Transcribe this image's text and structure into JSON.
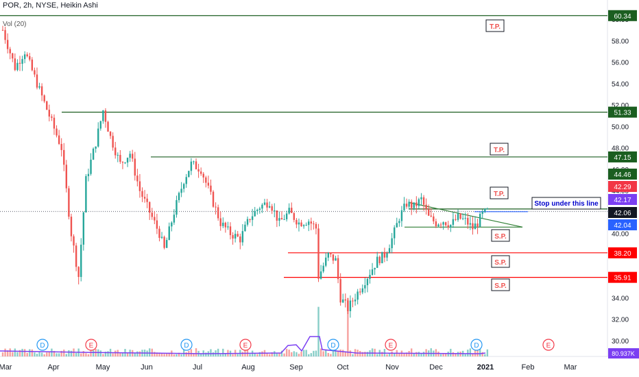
{
  "header": {
    "symbol_line": "POR, 2h, NYSE, Heikin Ashi",
    "volume_indicator": "Vol (20)"
  },
  "chart_data": {
    "type": "candlestick",
    "ylim": [
      29,
      61
    ],
    "y_ticks": [
      30.0,
      32.0,
      34.0,
      36.0,
      38.0,
      40.0,
      42.0,
      44.0,
      46.0,
      48.0,
      50.0,
      52.0,
      54.0,
      56.0,
      58.0,
      60.0
    ],
    "x_ticks": [
      "Mar",
      "Apr",
      "May",
      "Jun",
      "Jul",
      "Aug",
      "Sep",
      "Oct",
      "Nov",
      "Dec",
      "2021",
      "Feb",
      "Mar"
    ],
    "price_path": [
      [
        0,
        59.0
      ],
      [
        5,
        55.5
      ],
      [
        9,
        57.0
      ],
      [
        14,
        54.0
      ],
      [
        19,
        51.0
      ],
      [
        24,
        48.0
      ],
      [
        28,
        40.0
      ],
      [
        31,
        36.0
      ],
      [
        34,
        45.0
      ],
      [
        38,
        48.5
      ],
      [
        41,
        51.5
      ],
      [
        44,
        49.0
      ],
      [
        48,
        46.5
      ],
      [
        52,
        47.5
      ],
      [
        56,
        44.0
      ],
      [
        60,
        42.0
      ],
      [
        64,
        40.0
      ],
      [
        66,
        38.5
      ],
      [
        70,
        42.0
      ],
      [
        74,
        45.0
      ],
      [
        77,
        46.5
      ],
      [
        81,
        46.0
      ],
      [
        85,
        43.5
      ],
      [
        89,
        41.0
      ],
      [
        93,
        40.0
      ],
      [
        97,
        39.5
      ],
      [
        101,
        41.5
      ],
      [
        105,
        42.5
      ],
      [
        109,
        43.0
      ],
      [
        113,
        41.0
      ],
      [
        117,
        42.0
      ],
      [
        121,
        41.0
      ],
      [
        125,
        41.2
      ],
      [
        128,
        40.5
      ],
      [
        129,
        36.0
      ],
      [
        133,
        38.0
      ],
      [
        136,
        37.5
      ],
      [
        138,
        34.0
      ],
      [
        141,
        33.0
      ],
      [
        145,
        34.5
      ],
      [
        149,
        36.0
      ],
      [
        153,
        37.5
      ],
      [
        156,
        38.0
      ],
      [
        159,
        39.5
      ],
      [
        162,
        41.5
      ],
      [
        165,
        42.8
      ],
      [
        168,
        42.5
      ],
      [
        171,
        43.2
      ],
      [
        174,
        41.5
      ],
      [
        177,
        41.0
      ],
      [
        180,
        41.2
      ],
      [
        183,
        40.8
      ],
      [
        186,
        41.5
      ],
      [
        189,
        41.2
      ],
      [
        192,
        40.5
      ],
      [
        194,
        41.0
      ],
      [
        196,
        41.8
      ],
      [
        198,
        42.06
      ]
    ],
    "volume_note": "Vol (20) histogram along bottom"
  },
  "price_levels": [
    {
      "value": "60.34",
      "bg": "#1b5e20"
    },
    {
      "value": "51.33",
      "bg": "#1b5e20"
    },
    {
      "value": "47.15",
      "bg": "#1b5e20"
    },
    {
      "value": "44.46",
      "bg": "#1b5e20"
    },
    {
      "value": "42.29",
      "bg": "#f23645"
    },
    {
      "value": "42.17",
      "bg": "#7b3ff2"
    },
    {
      "value": "42.06",
      "bg": "#131722"
    },
    {
      "value": "42.04",
      "bg": "#2962ff"
    },
    {
      "value": "38.20",
      "bg": "#ff0000"
    },
    {
      "value": "35.91",
      "bg": "#ff0000"
    }
  ],
  "volume_label": {
    "value": "80.937K",
    "bg": "#7b3ff2"
  },
  "annotations": {
    "tp1": "T.P.",
    "tp2": "T.P.",
    "tp3": "T.P.",
    "sp1": "S.P.",
    "sp2": "S.P.",
    "sp3": "S.P.",
    "stop_note": "Stop under this line"
  },
  "event_markers": [
    {
      "label": "D",
      "color": "#2196f3"
    },
    {
      "label": "E",
      "color": "#f23645"
    },
    {
      "label": "D",
      "color": "#2196f3"
    },
    {
      "label": "E",
      "color": "#f23645"
    },
    {
      "label": "D",
      "color": "#2196f3"
    },
    {
      "label": "E",
      "color": "#f23645"
    },
    {
      "label": "D",
      "color": "#2196f3"
    },
    {
      "label": "E",
      "color": "#f23645"
    }
  ],
  "colors": {
    "up": "#26a69a",
    "down": "#ef5350",
    "support_green": "#1b5e20",
    "support_red": "#ff0000",
    "triangle_line": "#2e7d32",
    "volume_line": "#7b3ff2"
  }
}
